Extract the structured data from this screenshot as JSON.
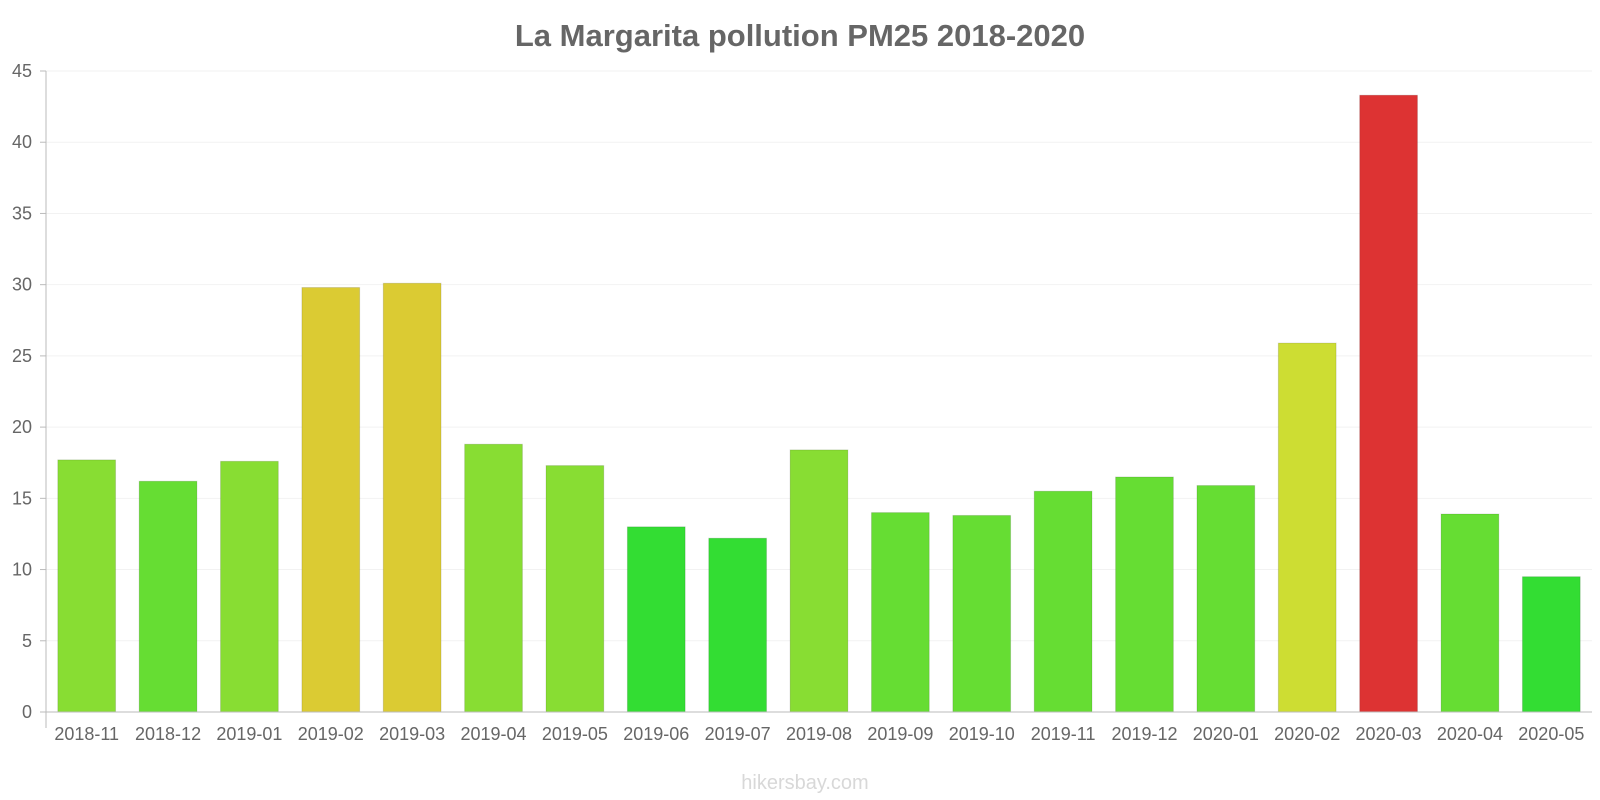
{
  "chart_data": {
    "type": "bar",
    "title": "La Margarita pollution PM25 2018-2020",
    "xlabel": "",
    "ylabel": "",
    "ylim": [
      0,
      45
    ],
    "yticks": [
      0,
      5,
      10,
      15,
      20,
      25,
      30,
      35,
      40,
      45
    ],
    "grid": true,
    "categories": [
      "2018-11",
      "2018-12",
      "2019-01",
      "2019-02",
      "2019-03",
      "2019-04",
      "2019-05",
      "2019-06",
      "2019-07",
      "2019-08",
      "2019-09",
      "2019-10",
      "2019-11",
      "2019-12",
      "2020-01",
      "2020-02",
      "2020-03",
      "2020-04",
      "2020-05"
    ],
    "values": [
      17.7,
      16.2,
      17.6,
      29.8,
      30.1,
      18.8,
      17.3,
      13.0,
      12.2,
      18.4,
      14.0,
      13.8,
      15.5,
      16.5,
      15.9,
      25.9,
      43.3,
      13.9,
      9.5
    ],
    "bar_colors": [
      "#88dd33",
      "#66dd33",
      "#88dd33",
      "#dbcb33",
      "#dbcb33",
      "#88dd33",
      "#88dd33",
      "#33dd33",
      "#33dd33",
      "#88dd33",
      "#66dd33",
      "#66dd33",
      "#66dd33",
      "#66dd33",
      "#66dd33",
      "#cddd33",
      "#dd3333",
      "#66dd33",
      "#33dd33"
    ],
    "legend": "none"
  },
  "watermark": "hikersbay.com"
}
